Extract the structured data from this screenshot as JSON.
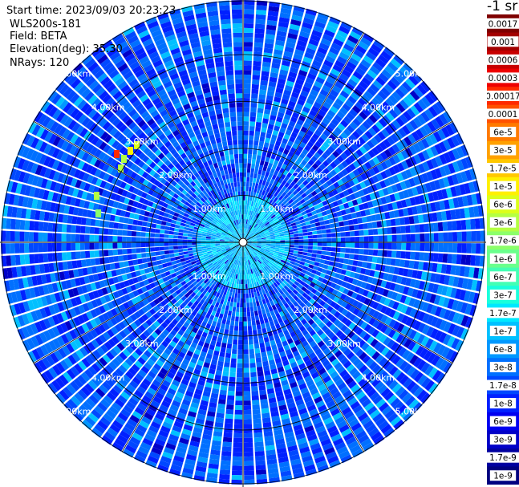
{
  "header": {
    "start_time": "Start time: 2023/09/03 20:23:23",
    "instrument": "WLS200s-181",
    "field": "Field: BETA",
    "elevation": "Elevation(deg): 35.30",
    "nrays": "NRays: 120"
  },
  "chart_data": {
    "type": "heatmap",
    "projection": "polar (PPI scan)",
    "field": "BETA",
    "nrays": 120,
    "range_rings": [
      "1.00km",
      "2.00km",
      "3.00km",
      "4.00km",
      "5.00km"
    ],
    "colorbar": {
      "unit_label": "-1 sr",
      "labels": [
        "0.0017",
        "0.001",
        "0.0006",
        "0.0003",
        "0.00017",
        "0.0001",
        "6e-5",
        "3e-5",
        "1.7e-5",
        "1e-5",
        "6e-6",
        "3e-6",
        "1.7e-6",
        "1e-6",
        "6e-7",
        "3e-7",
        "1.7e-7",
        "1e-7",
        "6e-8",
        "3e-8",
        "1.7e-8",
        "1e-8",
        "6e-9",
        "3e-9",
        "1.7e-9",
        "1e-9"
      ],
      "colors": [
        "#7f0000",
        "#a30000",
        "#c80000",
        "#ee0000",
        "#ff2a00",
        "#ff5200",
        "#ff7a00",
        "#ffa100",
        "#ffc800",
        "#fff000",
        "#dcff1a",
        "#b4ff43",
        "#8cff6a",
        "#6aff8c",
        "#43ffb4",
        "#1affdc",
        "#00e8ff",
        "#00c0ff",
        "#0098ff",
        "#0070ff",
        "#0048ff",
        "#0020ff",
        "#0000f0",
        "#0000c8",
        "#0000a0",
        "#000080"
      ]
    }
  }
}
